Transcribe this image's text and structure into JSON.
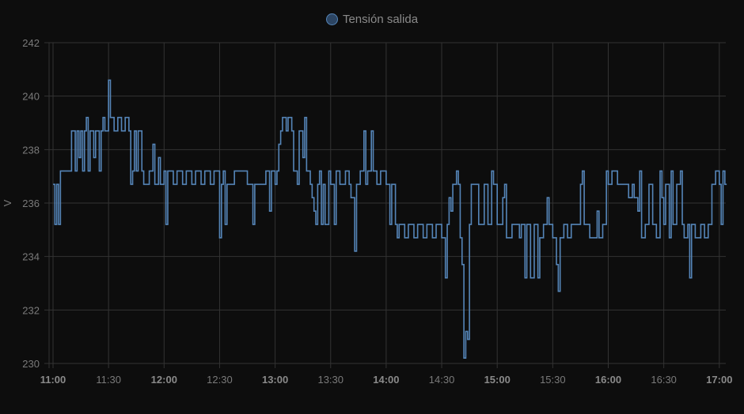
{
  "chart_data": {
    "type": "line",
    "step": true,
    "legend": {
      "position": "top",
      "entries": [
        "Tensión salida"
      ]
    },
    "series": [
      {
        "name": "Tensión salida",
        "color": "#5585b8",
        "points": [
          [
            "11:00",
            236.7
          ],
          [
            "11:01",
            235.2
          ],
          [
            "11:02",
            236.7
          ],
          [
            "11:03",
            235.2
          ],
          [
            "11:04",
            237.2
          ],
          [
            "11:10",
            238.7
          ],
          [
            "11:12",
            237.2
          ],
          [
            "11:13",
            238.7
          ],
          [
            "11:14",
            237.7
          ],
          [
            "11:15",
            238.7
          ],
          [
            "11:16",
            237.2
          ],
          [
            "11:17",
            238.7
          ],
          [
            "11:18",
            239.2
          ],
          [
            "11:19",
            237.2
          ],
          [
            "11:20",
            238.7
          ],
          [
            "11:22",
            237.7
          ],
          [
            "11:23",
            238.7
          ],
          [
            "11:25",
            237.2
          ],
          [
            "11:26",
            238.7
          ],
          [
            "11:27",
            239.2
          ],
          [
            "11:28",
            238.7
          ],
          [
            "11:30",
            240.6
          ],
          [
            "11:31",
            239.2
          ],
          [
            "11:33",
            238.7
          ],
          [
            "11:35",
            239.2
          ],
          [
            "11:37",
            238.7
          ],
          [
            "11:39",
            239.2
          ],
          [
            "11:41",
            238.7
          ],
          [
            "11:42",
            236.7
          ],
          [
            "11:43",
            237.2
          ],
          [
            "11:44",
            238.7
          ],
          [
            "11:45",
            237.2
          ],
          [
            "11:46",
            238.7
          ],
          [
            "11:48",
            237.2
          ],
          [
            "11:49",
            236.7
          ],
          [
            "11:52",
            237.2
          ],
          [
            "11:54",
            238.2
          ],
          [
            "11:55",
            236.7
          ],
          [
            "11:57",
            237.7
          ],
          [
            "11:58",
            236.7
          ],
          [
            "12:00",
            237.2
          ],
          [
            "12:01",
            235.2
          ],
          [
            "12:02",
            237.2
          ],
          [
            "12:05",
            236.7
          ],
          [
            "12:07",
            237.2
          ],
          [
            "12:10",
            236.7
          ],
          [
            "12:12",
            237.2
          ],
          [
            "12:15",
            236.7
          ],
          [
            "12:17",
            237.2
          ],
          [
            "12:20",
            236.7
          ],
          [
            "12:22",
            237.2
          ],
          [
            "12:25",
            236.7
          ],
          [
            "12:27",
            237.2
          ],
          [
            "12:30",
            234.7
          ],
          [
            "12:31",
            236.7
          ],
          [
            "12:32",
            237.2
          ],
          [
            "12:33",
            235.2
          ],
          [
            "12:34",
            236.7
          ],
          [
            "12:38",
            237.2
          ],
          [
            "12:45",
            236.7
          ],
          [
            "12:48",
            235.2
          ],
          [
            "12:49",
            236.7
          ],
          [
            "12:55",
            237.2
          ],
          [
            "12:57",
            235.7
          ],
          [
            "12:58",
            237.2
          ],
          [
            "13:00",
            236.7
          ],
          [
            "13:01",
            237.2
          ],
          [
            "13:02",
            238.2
          ],
          [
            "13:03",
            238.7
          ],
          [
            "13:04",
            239.2
          ],
          [
            "13:06",
            238.7
          ],
          [
            "13:07",
            239.2
          ],
          [
            "13:09",
            238.7
          ],
          [
            "13:10",
            237.2
          ],
          [
            "13:12",
            236.7
          ],
          [
            "13:13",
            238.7
          ],
          [
            "13:15",
            237.7
          ],
          [
            "13:16",
            239.2
          ],
          [
            "13:17",
            237.2
          ],
          [
            "13:19",
            236.7
          ],
          [
            "13:20",
            236.2
          ],
          [
            "13:21",
            235.7
          ],
          [
            "13:22",
            235.2
          ],
          [
            "13:23",
            236.7
          ],
          [
            "13:24",
            237.2
          ],
          [
            "13:25",
            235.2
          ],
          [
            "13:26",
            236.7
          ],
          [
            "13:27",
            235.2
          ],
          [
            "13:29",
            237.2
          ],
          [
            "13:30",
            236.7
          ],
          [
            "13:32",
            235.2
          ],
          [
            "13:33",
            237.2
          ],
          [
            "13:35",
            236.7
          ],
          [
            "13:38",
            237.2
          ],
          [
            "13:40",
            236.7
          ],
          [
            "13:41",
            236.2
          ],
          [
            "13:43",
            234.2
          ],
          [
            "13:44",
            236.7
          ],
          [
            "13:46",
            237.2
          ],
          [
            "13:48",
            238.7
          ],
          [
            "13:49",
            236.7
          ],
          [
            "13:50",
            237.2
          ],
          [
            "13:52",
            238.7
          ],
          [
            "13:53",
            237.2
          ],
          [
            "13:55",
            236.7
          ],
          [
            "13:57",
            237.2
          ],
          [
            "14:00",
            236.7
          ],
          [
            "14:02",
            235.2
          ],
          [
            "14:03",
            236.7
          ],
          [
            "14:05",
            235.2
          ],
          [
            "14:06",
            234.7
          ],
          [
            "14:07",
            235.2
          ],
          [
            "14:10",
            234.7
          ],
          [
            "14:12",
            235.2
          ],
          [
            "14:15",
            234.7
          ],
          [
            "14:17",
            235.2
          ],
          [
            "14:20",
            234.7
          ],
          [
            "14:22",
            235.2
          ],
          [
            "14:25",
            234.7
          ],
          [
            "14:27",
            235.2
          ],
          [
            "14:30",
            234.7
          ],
          [
            "14:32",
            233.2
          ],
          [
            "14:33",
            235.2
          ],
          [
            "14:34",
            236.2
          ],
          [
            "14:35",
            235.7
          ],
          [
            "14:36",
            236.7
          ],
          [
            "14:38",
            237.2
          ],
          [
            "14:39",
            236.7
          ],
          [
            "14:40",
            234.7
          ],
          [
            "14:41",
            233.7
          ],
          [
            "14:42",
            230.2
          ],
          [
            "14:43",
            231.2
          ],
          [
            "14:44",
            230.9
          ],
          [
            "14:45",
            235.2
          ],
          [
            "14:46",
            236.7
          ],
          [
            "14:50",
            235.2
          ],
          [
            "14:53",
            236.7
          ],
          [
            "14:55",
            235.2
          ],
          [
            "14:57",
            237.2
          ],
          [
            "14:58",
            236.7
          ],
          [
            "15:00",
            235.2
          ],
          [
            "15:03",
            236.2
          ],
          [
            "15:04",
            236.7
          ],
          [
            "15:05",
            234.7
          ],
          [
            "15:08",
            235.2
          ],
          [
            "15:12",
            234.7
          ],
          [
            "15:13",
            235.2
          ],
          [
            "15:15",
            233.2
          ],
          [
            "15:16",
            235.2
          ],
          [
            "15:18",
            233.2
          ],
          [
            "15:20",
            235.2
          ],
          [
            "15:22",
            233.2
          ],
          [
            "15:23",
            234.7
          ],
          [
            "15:25",
            235.2
          ],
          [
            "15:27",
            236.2
          ],
          [
            "15:28",
            235.2
          ],
          [
            "15:30",
            234.7
          ],
          [
            "15:32",
            233.7
          ],
          [
            "15:33",
            232.7
          ],
          [
            "15:34",
            234.7
          ],
          [
            "15:36",
            235.2
          ],
          [
            "15:38",
            234.7
          ],
          [
            "15:40",
            235.2
          ],
          [
            "15:45",
            236.7
          ],
          [
            "15:46",
            237.2
          ],
          [
            "15:47",
            235.2
          ],
          [
            "15:50",
            234.7
          ],
          [
            "15:54",
            235.7
          ],
          [
            "15:55",
            234.7
          ],
          [
            "15:57",
            235.2
          ],
          [
            "15:59",
            237.2
          ],
          [
            "16:00",
            236.7
          ],
          [
            "16:02",
            237.2
          ],
          [
            "16:05",
            236.7
          ],
          [
            "16:11",
            236.2
          ],
          [
            "16:13",
            236.7
          ],
          [
            "16:14",
            236.2
          ],
          [
            "16:16",
            235.7
          ],
          [
            "16:17",
            237.2
          ],
          [
            "16:18",
            234.7
          ],
          [
            "16:20",
            235.2
          ],
          [
            "16:22",
            236.7
          ],
          [
            "16:24",
            235.2
          ],
          [
            "16:26",
            234.7
          ],
          [
            "16:28",
            237.2
          ],
          [
            "16:29",
            236.2
          ],
          [
            "16:30",
            235.2
          ],
          [
            "16:31",
            236.7
          ],
          [
            "16:33",
            234.7
          ],
          [
            "16:34",
            237.2
          ],
          [
            "16:35",
            235.2
          ],
          [
            "16:37",
            236.7
          ],
          [
            "16:39",
            237.2
          ],
          [
            "16:40",
            235.2
          ],
          [
            "16:41",
            234.7
          ],
          [
            "16:43",
            235.2
          ],
          [
            "16:44",
            233.2
          ],
          [
            "16:45",
            235.2
          ],
          [
            "16:47",
            234.7
          ],
          [
            "16:50",
            235.2
          ],
          [
            "16:52",
            234.7
          ],
          [
            "16:54",
            235.2
          ],
          [
            "16:56",
            236.7
          ],
          [
            "16:58",
            237.2
          ],
          [
            "17:00",
            236.7
          ],
          [
            "17:01",
            235.2
          ],
          [
            "17:02",
            237.2
          ],
          [
            "17:03",
            236.7
          ],
          [
            "17:04",
            236.7
          ]
        ]
      }
    ],
    "xlabel": "",
    "ylabel": "V",
    "ylim": [
      230,
      242
    ],
    "xlim": [
      "11:00",
      "17:04"
    ],
    "yticks": [
      "230",
      "232",
      "234",
      "236",
      "238",
      "240",
      "242"
    ],
    "xticks": [
      {
        "label": "11:00",
        "bold": true
      },
      {
        "label": "11:30",
        "bold": false
      },
      {
        "label": "12:00",
        "bold": true
      },
      {
        "label": "12:30",
        "bold": false
      },
      {
        "label": "13:00",
        "bold": true
      },
      {
        "label": "13:30",
        "bold": false
      },
      {
        "label": "14:00",
        "bold": true
      },
      {
        "label": "14:30",
        "bold": false
      },
      {
        "label": "15:00",
        "bold": true
      },
      {
        "label": "15:30",
        "bold": false
      },
      {
        "label": "16:00",
        "bold": true
      },
      {
        "label": "16:30",
        "bold": false
      },
      {
        "label": "17:00",
        "bold": true
      }
    ],
    "grid": true,
    "colors": {
      "background": "#0d0d0d",
      "grid": "#333333",
      "line": "#5585b8"
    }
  }
}
